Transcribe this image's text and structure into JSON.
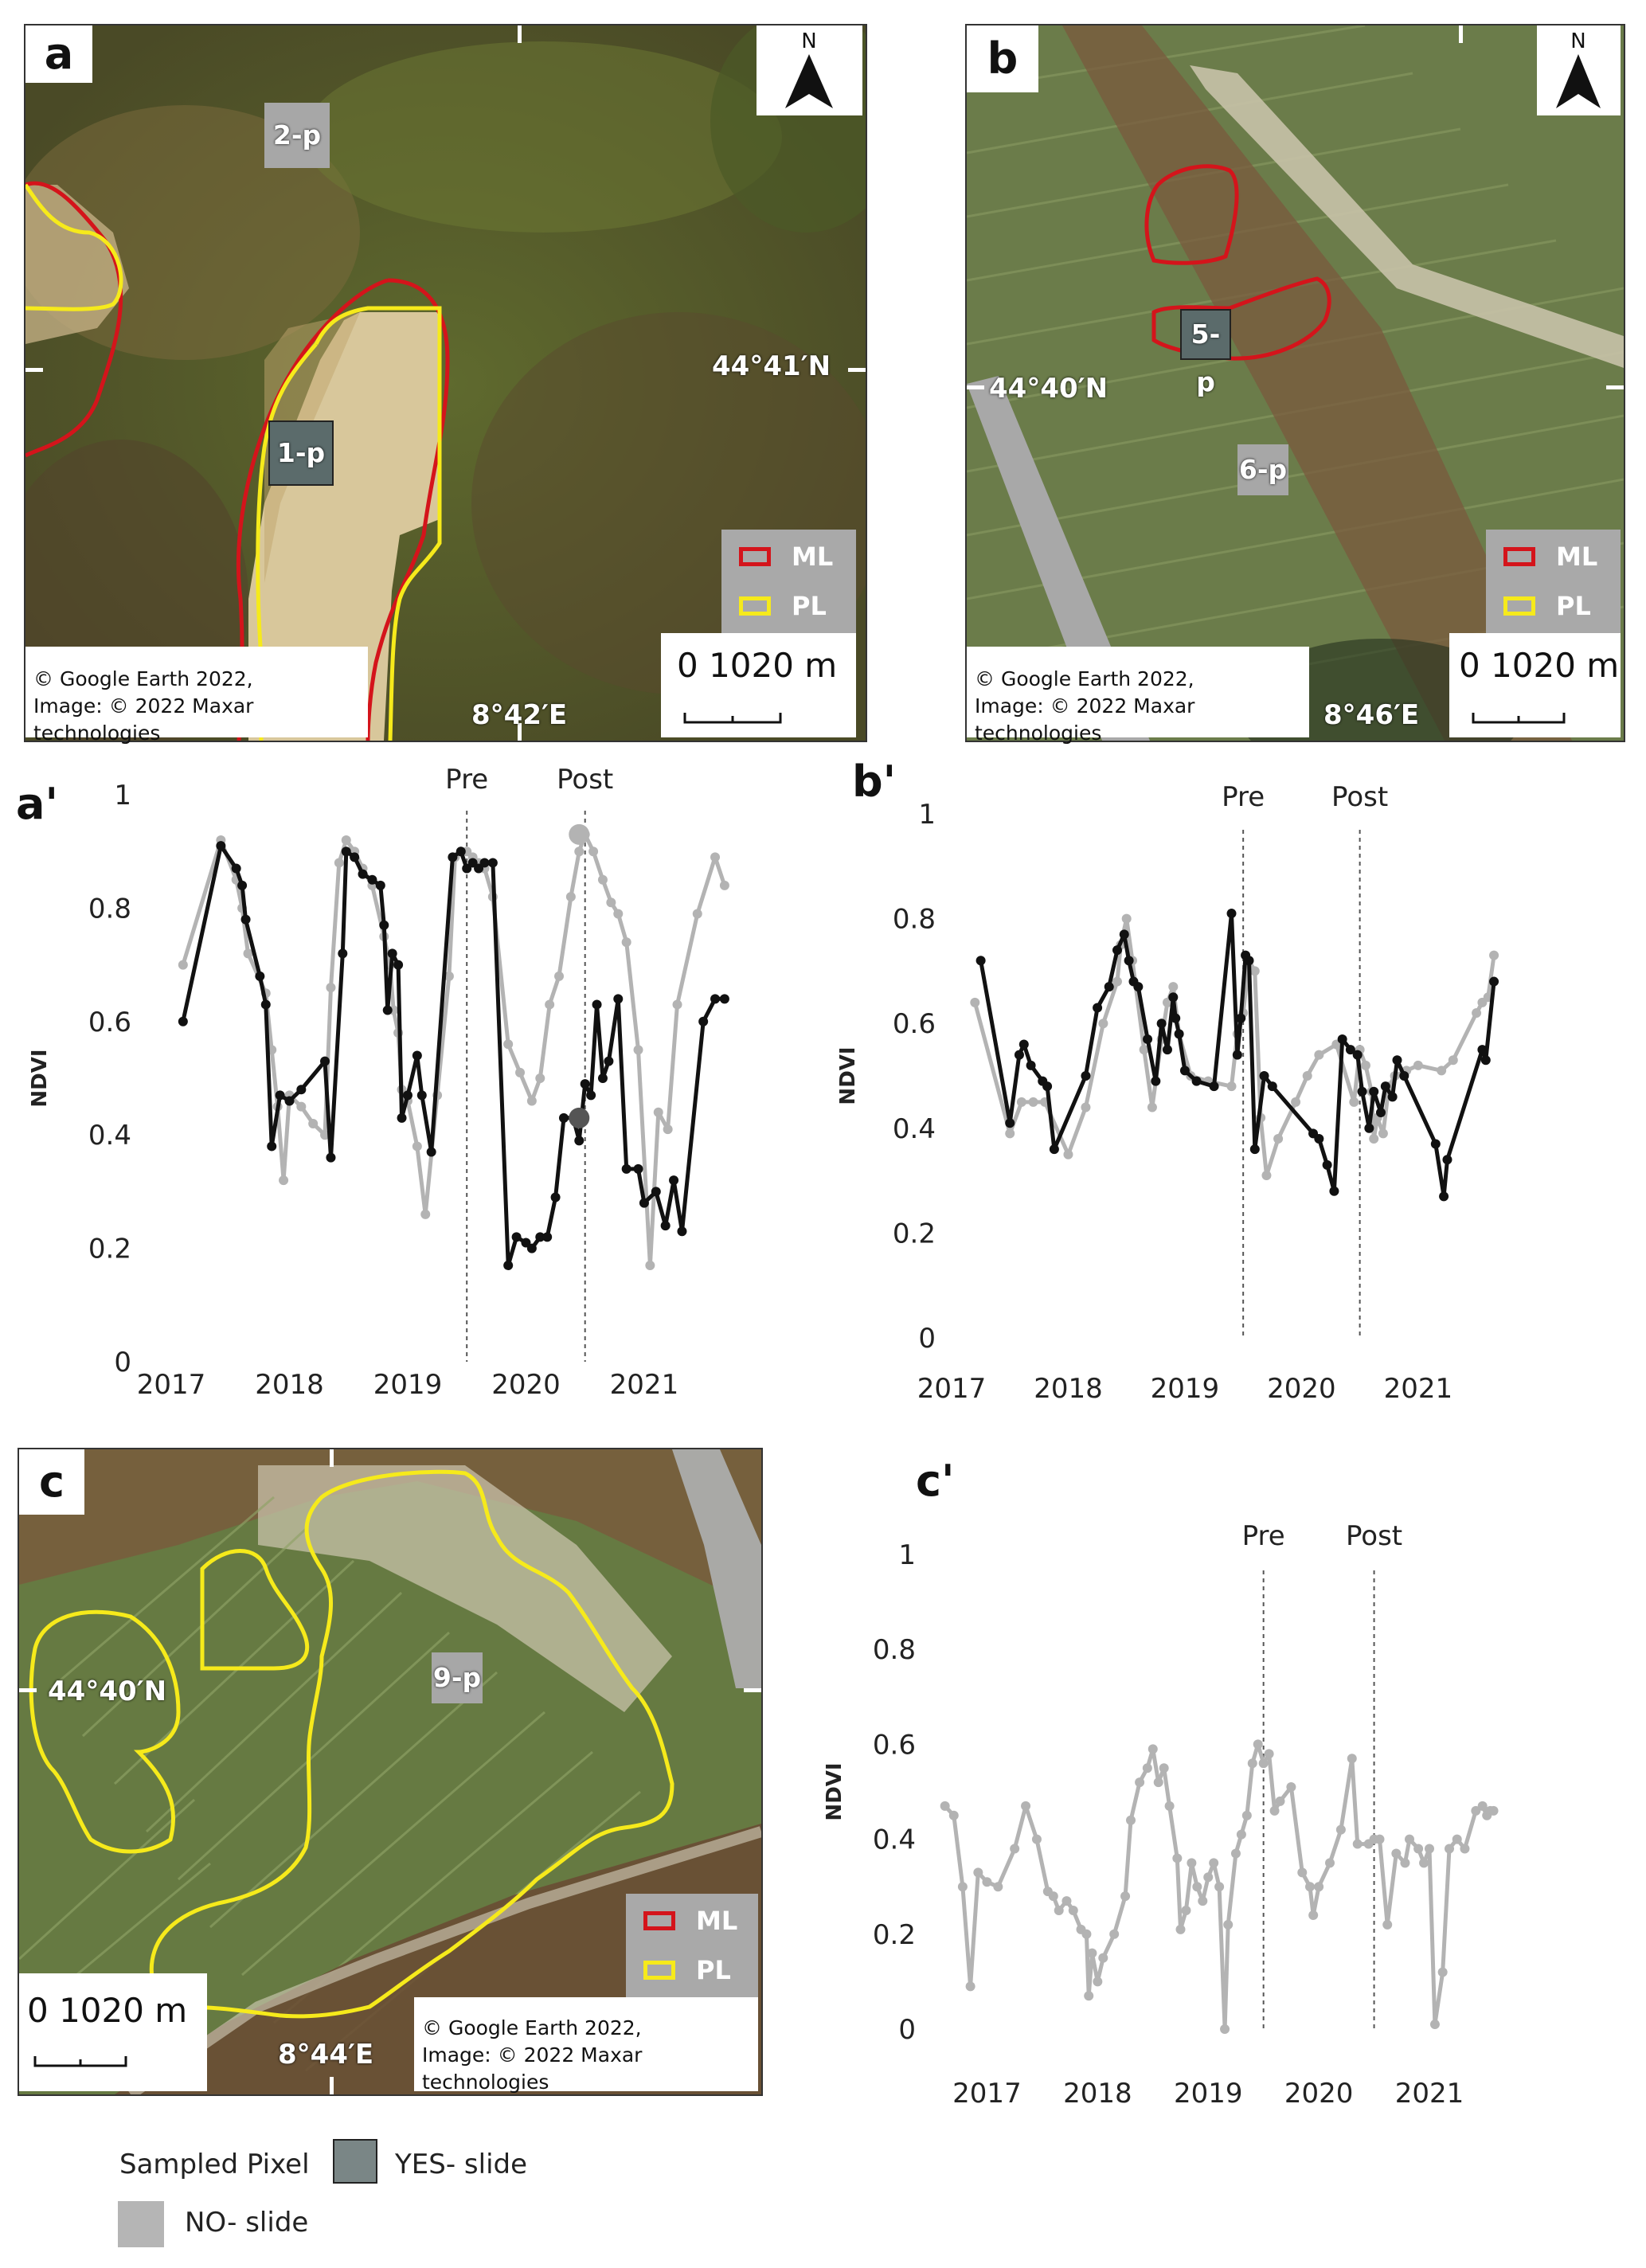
{
  "panels": {
    "a": {
      "letter": "a",
      "attribution_line1": "© Google Earth 2022,",
      "attribution_line2": "Image: © 2022 Maxar technologies",
      "lat": "44°41′N",
      "lon": "8°42′E",
      "scale": "0 1020 m",
      "pixels": [
        {
          "label": "1-p",
          "kind": "yes"
        },
        {
          "label": "2-p",
          "kind": "no"
        }
      ]
    },
    "b": {
      "letter": "b",
      "attribution_line1": "© Google Earth 2022,",
      "attribution_line2": "Image: © 2022 Maxar technologies",
      "lat": "44°40′N",
      "lon": "8°46′E",
      "scale": "0 1020 m",
      "pixels": [
        {
          "label": "5-p",
          "kind": "yes"
        },
        {
          "label": "6-p",
          "kind": "no"
        }
      ]
    },
    "c": {
      "letter": "c",
      "attribution_line1": "© Google Earth 2022,",
      "attribution_line2": "Image: © 2022 Maxar technologies",
      "lat": "44°40′N",
      "lon": "8°44′E",
      "scale": "0 1020 m",
      "pixels": [
        {
          "label": "9-p",
          "kind": "no"
        }
      ]
    }
  },
  "north_label": "N",
  "map_legend": {
    "ml": "ML",
    "pl": "PL",
    "ml_color": "#d4141b",
    "pl_color": "#f6ea1b"
  },
  "key": {
    "title": "Sampled Pixel",
    "yes": "YES- slide",
    "no": "NO- slide",
    "yes_color": "#7a8686",
    "no_color": "#b5b5b5"
  },
  "chart_data": [
    {
      "panel": "a'",
      "type": "line",
      "ylabel": "NDVI",
      "ylim": [
        0,
        1
      ],
      "yticks": [
        "0",
        "0.2",
        "0.4",
        "0.6",
        "0.8",
        "1"
      ],
      "xticks": [
        "2017",
        "2018",
        "2019",
        "2020",
        "2021"
      ],
      "markers": [
        {
          "label": "Pre",
          "x": 2019.5
        },
        {
          "label": "Post",
          "x": 2020.5
        }
      ],
      "series": [
        {
          "kind": "no",
          "color": "#b3b3b3",
          "x": [
            2017.1,
            2017.42,
            2017.55,
            2017.6,
            2017.65,
            2017.8,
            2017.85,
            2017.9,
            2017.95,
            2018.0,
            2018.1,
            2018.2,
            2018.3,
            2018.35,
            2018.42,
            2018.48,
            2018.55,
            2018.62,
            2018.7,
            2018.8,
            2018.85,
            2018.88,
            2018.92,
            2018.95,
            2019.0,
            2019.08,
            2019.15,
            2019.25,
            2019.35,
            2019.4,
            2019.45,
            2019.5,
            2019.55,
            2019.6,
            2019.65,
            2019.72,
            2019.85,
            2019.95,
            2020.05,
            2020.12,
            2020.2,
            2020.28,
            2020.38,
            2020.45,
            2020.5,
            2020.57,
            2020.65,
            2020.72,
            2020.78,
            2020.85,
            2020.95,
            2021.05,
            2021.12,
            2021.2,
            2021.28,
            2021.45,
            2021.6,
            2021.68
          ],
          "y": [
            0.7,
            0.92,
            0.85,
            0.8,
            0.72,
            0.65,
            0.55,
            0.45,
            0.32,
            0.47,
            0.45,
            0.42,
            0.4,
            0.66,
            0.88,
            0.92,
            0.9,
            0.87,
            0.84,
            0.75,
            0.7,
            0.62,
            0.58,
            0.48,
            0.46,
            0.38,
            0.26,
            0.47,
            0.68,
            0.89,
            0.9,
            0.9,
            0.89,
            0.88,
            0.87,
            0.82,
            0.56,
            0.51,
            0.46,
            0.5,
            0.63,
            0.68,
            0.82,
            0.9,
            0.93,
            0.9,
            0.85,
            0.81,
            0.79,
            0.74,
            0.55,
            0.17,
            0.44,
            0.41,
            0.63,
            0.79,
            0.89,
            0.84
          ]
        },
        {
          "kind": "yes",
          "color": "#111111",
          "x": [
            2017.1,
            2017.42,
            2017.55,
            2017.6,
            2017.63,
            2017.75,
            2017.8,
            2017.85,
            2017.92,
            2018.0,
            2018.1,
            2018.3,
            2018.35,
            2018.45,
            2018.48,
            2018.55,
            2018.62,
            2018.7,
            2018.77,
            2018.8,
            2018.83,
            2018.87,
            2018.92,
            2018.95,
            2019.0,
            2019.08,
            2019.12,
            2019.2,
            2019.38,
            2019.45,
            2019.5,
            2019.55,
            2019.6,
            2019.65,
            2019.72,
            2019.85,
            2019.92,
            2020.0,
            2020.05,
            2020.12,
            2020.18,
            2020.25,
            2020.32,
            2020.4,
            2020.45,
            2020.5,
            2020.55,
            2020.6,
            2020.65,
            2020.7,
            2020.78,
            2020.85,
            2020.95,
            2021.0,
            2021.1,
            2021.18,
            2021.25,
            2021.32,
            2021.5,
            2021.6,
            2021.68
          ],
          "y": [
            0.6,
            0.91,
            0.87,
            0.84,
            0.78,
            0.68,
            0.63,
            0.38,
            0.47,
            0.46,
            0.48,
            0.53,
            0.36,
            0.72,
            0.9,
            0.89,
            0.86,
            0.85,
            0.84,
            0.77,
            0.62,
            0.72,
            0.7,
            0.43,
            0.47,
            0.54,
            0.47,
            0.37,
            0.89,
            0.9,
            0.87,
            0.88,
            0.87,
            0.88,
            0.88,
            0.17,
            0.22,
            0.21,
            0.2,
            0.22,
            0.22,
            0.29,
            0.43,
            0.43,
            0.39,
            0.49,
            0.47,
            0.63,
            0.5,
            0.53,
            0.64,
            0.34,
            0.34,
            0.28,
            0.3,
            0.24,
            0.32,
            0.23,
            0.6,
            0.64,
            0.64
          ]
        }
      ],
      "highlights": [
        {
          "x": 2020.45,
          "y": 0.93,
          "color": "#b3b3b3"
        },
        {
          "x": 2020.45,
          "y": 0.43,
          "color": "#555555"
        }
      ]
    },
    {
      "panel": "b'",
      "type": "line",
      "ylabel": "NDVI",
      "ylim": [
        0,
        1
      ],
      "yticks": [
        "0",
        "0.2",
        "0.4",
        "0.6",
        "0.8",
        "1"
      ],
      "xticks": [
        "2017",
        "2018",
        "2019",
        "2020",
        "2021"
      ],
      "markers": [
        {
          "label": "Pre",
          "x": 2019.5
        },
        {
          "label": "Post",
          "x": 2020.5
        }
      ],
      "series": [
        {
          "kind": "no",
          "color": "#b3b3b3",
          "x": [
            2017.2,
            2017.5,
            2017.6,
            2017.7,
            2017.8,
            2018.0,
            2018.15,
            2018.3,
            2018.42,
            2018.45,
            2018.5,
            2018.55,
            2018.65,
            2018.72,
            2018.8,
            2018.85,
            2018.9,
            2018.95,
            2019.05,
            2019.2,
            2019.4,
            2019.45,
            2019.5,
            2019.55,
            2019.6,
            2019.65,
            2019.7,
            2019.8,
            2019.95,
            2020.05,
            2020.15,
            2020.3,
            2020.45,
            2020.5,
            2020.55,
            2020.6,
            2020.62,
            2020.65,
            2020.7,
            2020.75,
            2020.8,
            2020.9,
            2021.0,
            2021.2,
            2021.3,
            2021.5,
            2021.55,
            2021.6,
            2021.65
          ],
          "y": [
            0.64,
            0.39,
            0.45,
            0.45,
            0.45,
            0.35,
            0.44,
            0.6,
            0.68,
            0.75,
            0.8,
            0.72,
            0.55,
            0.44,
            0.57,
            0.64,
            0.67,
            0.58,
            0.5,
            0.49,
            0.48,
            0.58,
            0.62,
            0.72,
            0.7,
            0.42,
            0.31,
            0.38,
            0.45,
            0.5,
            0.54,
            0.56,
            0.45,
            0.55,
            0.52,
            0.47,
            0.38,
            0.42,
            0.39,
            0.48,
            0.5,
            0.51,
            0.52,
            0.51,
            0.53,
            0.62,
            0.64,
            0.65,
            0.73
          ]
        },
        {
          "kind": "yes",
          "color": "#111111",
          "x": [
            2017.25,
            2017.5,
            2017.58,
            2017.62,
            2017.68,
            2017.78,
            2017.82,
            2017.88,
            2018.15,
            2018.25,
            2018.35,
            2018.42,
            2018.48,
            2018.52,
            2018.56,
            2018.6,
            2018.68,
            2018.75,
            2018.8,
            2018.85,
            2018.9,
            2018.92,
            2018.95,
            2019.0,
            2019.1,
            2019.25,
            2019.4,
            2019.45,
            2019.48,
            2019.52,
            2019.55,
            2019.6,
            2019.68,
            2019.75,
            2020.1,
            2020.15,
            2020.22,
            2020.28,
            2020.35,
            2020.42,
            2020.48,
            2020.52,
            2020.58,
            2020.62,
            2020.68,
            2020.72,
            2020.78,
            2020.82,
            2020.88,
            2021.15,
            2021.22,
            2021.25,
            2021.55,
            2021.58,
            2021.65
          ],
          "y": [
            0.72,
            0.41,
            0.54,
            0.56,
            0.52,
            0.49,
            0.48,
            0.36,
            0.5,
            0.63,
            0.67,
            0.74,
            0.77,
            0.72,
            0.68,
            0.67,
            0.57,
            0.49,
            0.6,
            0.55,
            0.65,
            0.61,
            0.58,
            0.51,
            0.49,
            0.48,
            0.81,
            0.54,
            0.61,
            0.73,
            0.72,
            0.36,
            0.5,
            0.48,
            0.39,
            0.38,
            0.33,
            0.28,
            0.57,
            0.55,
            0.54,
            0.47,
            0.4,
            0.47,
            0.43,
            0.48,
            0.46,
            0.53,
            0.5,
            0.37,
            0.27,
            0.34,
            0.55,
            0.53,
            0.68
          ]
        }
      ],
      "highlights": []
    },
    {
      "panel": "c'",
      "type": "line",
      "ylabel": "NDVI",
      "ylim": [
        0,
        1
      ],
      "yticks": [
        "0",
        "0.2",
        "0.4",
        "0.6",
        "0.8",
        "1"
      ],
      "xticks": [
        "2017",
        "2018",
        "2019",
        "2020",
        "2021"
      ],
      "markers": [
        {
          "label": "Pre",
          "x": 2019.5
        },
        {
          "label": "Post",
          "x": 2020.5
        }
      ],
      "series": [
        {
          "kind": "no",
          "color": "#b3b3b3",
          "x": [
            2016.62,
            2016.7,
            2016.78,
            2016.85,
            2016.92,
            2017.0,
            2017.1,
            2017.25,
            2017.35,
            2017.45,
            2017.55,
            2017.6,
            2017.65,
            2017.72,
            2017.78,
            2017.85,
            2017.9,
            2017.92,
            2017.95,
            2018.0,
            2018.05,
            2018.15,
            2018.25,
            2018.3,
            2018.38,
            2018.45,
            2018.5,
            2018.55,
            2018.6,
            2018.65,
            2018.72,
            2018.75,
            2018.8,
            2018.85,
            2018.9,
            2018.95,
            2019.0,
            2019.05,
            2019.1,
            2019.15,
            2019.18,
            2019.25,
            2019.3,
            2019.35,
            2019.4,
            2019.45,
            2019.5,
            2019.55,
            2019.6,
            2019.65,
            2019.75,
            2019.85,
            2019.92,
            2019.95,
            2020.0,
            2020.1,
            2020.2,
            2020.3,
            2020.35,
            2020.45,
            2020.5,
            2020.55,
            2020.62,
            2020.7,
            2020.78,
            2020.82,
            2020.9,
            2020.95,
            2021.0,
            2021.05,
            2021.12,
            2021.18,
            2021.25,
            2021.32,
            2021.42,
            2021.48,
            2021.52,
            2021.55,
            2021.58
          ],
          "y": [
            0.47,
            0.45,
            0.3,
            0.09,
            0.33,
            0.31,
            0.3,
            0.38,
            0.47,
            0.4,
            0.29,
            0.28,
            0.25,
            0.27,
            0.25,
            0.21,
            0.2,
            0.07,
            0.16,
            0.1,
            0.15,
            0.2,
            0.28,
            0.44,
            0.52,
            0.55,
            0.59,
            0.52,
            0.55,
            0.47,
            0.36,
            0.21,
            0.25,
            0.35,
            0.3,
            0.27,
            0.32,
            0.35,
            0.3,
            0.0,
            0.22,
            0.37,
            0.41,
            0.45,
            0.56,
            0.6,
            0.56,
            0.58,
            0.46,
            0.48,
            0.51,
            0.33,
            0.3,
            0.24,
            0.3,
            0.35,
            0.42,
            0.57,
            0.39,
            0.39,
            0.4,
            0.4,
            0.22,
            0.37,
            0.35,
            0.4,
            0.38,
            0.35,
            0.38,
            0.01,
            0.12,
            0.38,
            0.4,
            0.38,
            0.46,
            0.47,
            0.45,
            0.46,
            0.46
          ]
        }
      ],
      "highlights": []
    }
  ]
}
